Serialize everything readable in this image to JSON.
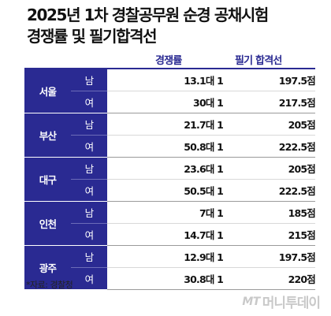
{
  "title": {
    "line1": "2025년 1차 경찰공무원 순경 공채시험",
    "line2": "경쟁률 및 필기합격선"
  },
  "columns": {
    "ratio": "경쟁률",
    "score": "필기 합격선"
  },
  "groups": [
    {
      "region": "서울",
      "rows": [
        {
          "gender": "남",
          "ratio": "13.1대 1",
          "score": "197.5점"
        },
        {
          "gender": "여",
          "ratio": "30대 1",
          "score": "217.5점"
        }
      ]
    },
    {
      "region": "부산",
      "rows": [
        {
          "gender": "남",
          "ratio": "21.7대 1",
          "score": "205점"
        },
        {
          "gender": "여",
          "ratio": "50.8대 1",
          "score": "222.5점"
        }
      ]
    },
    {
      "region": "대구",
      "rows": [
        {
          "gender": "남",
          "ratio": "23.6대 1",
          "score": "205점"
        },
        {
          "gender": "여",
          "ratio": "50.5대 1",
          "score": "222.5점"
        }
      ]
    },
    {
      "region": "인천",
      "rows": [
        {
          "gender": "남",
          "ratio": "7대 1",
          "score": "185점"
        },
        {
          "gender": "여",
          "ratio": "14.7대 1",
          "score": "215점"
        }
      ]
    },
    {
      "region": "광주",
      "rows": [
        {
          "gender": "남",
          "ratio": "12.9대 1",
          "score": "197.5점"
        },
        {
          "gender": "여",
          "ratio": "30.8대 1",
          "score": "220점"
        }
      ]
    }
  ],
  "note": "*자료: 경찰청",
  "brand": {
    "logo": "MT",
    "name": "머니투데이"
  },
  "colors": {
    "header_bg": "#2a2a92",
    "accent_text": "#2a2a92"
  }
}
